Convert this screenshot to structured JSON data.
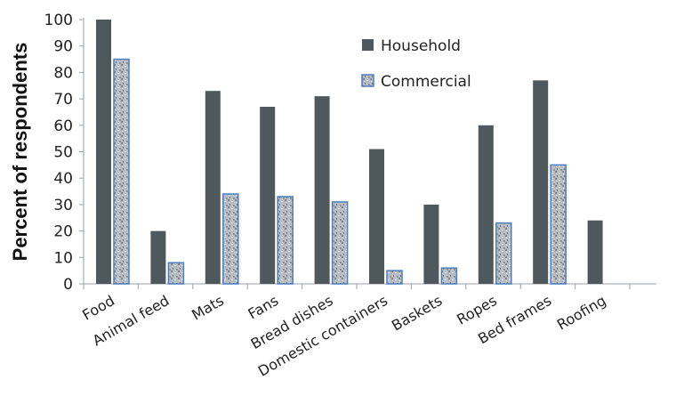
{
  "chart_data": {
    "type": "bar",
    "title": "",
    "xlabel": "",
    "ylabel": "Percent of respondents",
    "ylim": [
      0,
      100
    ],
    "yticks": [
      0,
      10,
      20,
      30,
      40,
      50,
      60,
      70,
      80,
      90,
      100
    ],
    "categories": [
      "Food",
      "Animal feed",
      "Mats",
      "Fans",
      "Bread dishes",
      "Domestic containers",
      "Baskets",
      "Ropes",
      "Bed frames",
      "Roofing"
    ],
    "series": [
      {
        "name": "Household",
        "color": "#4f585c",
        "values": [
          100,
          20,
          73,
          67,
          71,
          51,
          30,
          60,
          77,
          24
        ]
      },
      {
        "name": "Commercial",
        "color": "#b9bec4",
        "values": [
          85,
          8,
          34,
          33,
          31,
          5,
          6,
          23,
          45,
          null
        ]
      }
    ],
    "legend_position": "top-right",
    "grid": false
  }
}
